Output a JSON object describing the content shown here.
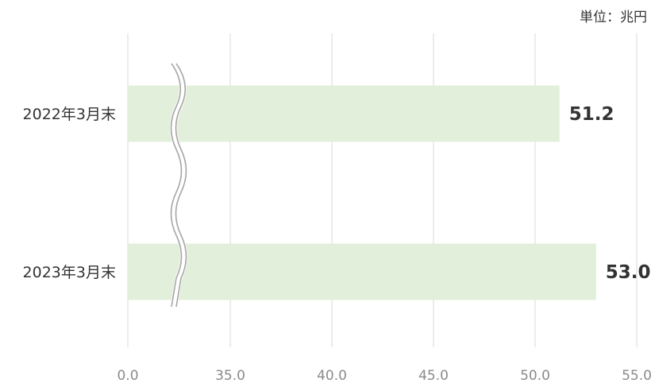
{
  "unit_label": "単位：兆円",
  "colors": {
    "bar": "#e2efda",
    "grid": "#d9d9d9",
    "text": "#333333",
    "tick": "#8a8a8a",
    "break_mark": "#a6a6a6"
  },
  "chart_data": {
    "type": "bar",
    "orientation": "horizontal",
    "axis_break": {
      "from": 0,
      "to": 35
    },
    "categories": [
      "2022年3月末",
      "2023年3月末"
    ],
    "values": [
      51.2,
      53.0
    ],
    "data_labels": [
      "51.2",
      "53.0"
    ],
    "xlim": [
      0,
      55
    ],
    "xticks": [
      {
        "value": 0,
        "label": "0.0"
      },
      {
        "value": 35,
        "label": "35.0"
      },
      {
        "value": 40,
        "label": "40.0"
      },
      {
        "value": 45,
        "label": "45.0"
      },
      {
        "value": 50,
        "label": "50.0"
      },
      {
        "value": 55,
        "label": "55.0"
      }
    ],
    "grid": true,
    "title": "",
    "xlabel": "",
    "ylabel": ""
  }
}
